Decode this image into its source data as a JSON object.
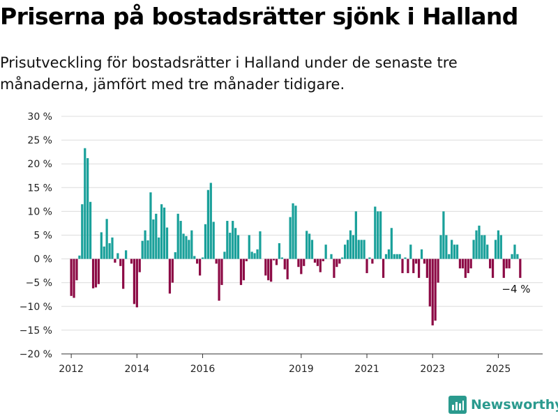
{
  "title": "Priserna på bostadsrätter sjönk i Halland",
  "subtitle": "Prisutveckling för bostadsrätter i Halland under de senaste tre månaderna, jämfört med tre månader tidigare.",
  "brand": {
    "name": "Newsworthy"
  },
  "colors": {
    "positive": "#19a09a",
    "negative": "#8c0a45",
    "grid": "#dcdcdc",
    "axis": "#333333",
    "brand": "#2a9a8e"
  },
  "chart_data": {
    "type": "bar",
    "ylim": [
      -20,
      30
    ],
    "yticks": [
      30,
      25,
      20,
      15,
      10,
      5,
      0,
      -5,
      -10,
      -15,
      -20
    ],
    "ytick_labels": [
      "30 %",
      "25 %",
      "20 %",
      "15 %",
      "10 %",
      "5 %",
      "0 %",
      "−5 %",
      "−10 %",
      "−15 %",
      "−20 %"
    ],
    "xticks": [
      {
        "label": "2012",
        "x": 2012
      },
      {
        "label": "2014",
        "x": 2014
      },
      {
        "label": "2016",
        "x": 2016
      },
      {
        "label": "2019",
        "x": 2019
      },
      {
        "label": "2021",
        "x": 2021
      },
      {
        "label": "2023",
        "x": 2023
      },
      {
        "label": "2025",
        "x": 2025
      }
    ],
    "grid": true,
    "annotation": {
      "text": "−4 %",
      "x": 2025.5,
      "y": -4
    },
    "series": [
      {
        "points": [
          {
            "x": 2012.0,
            "y": -7.8
          },
          {
            "x": 2012.083,
            "y": -8.2
          },
          {
            "x": 2012.167,
            "y": -4.5
          },
          {
            "x": 2012.25,
            "y": 0.7
          },
          {
            "x": 2012.333,
            "y": 11.5
          },
          {
            "x": 2012.417,
            "y": 23.3
          },
          {
            "x": 2012.5,
            "y": 21.2
          },
          {
            "x": 2012.583,
            "y": 12.0
          },
          {
            "x": 2012.667,
            "y": -6.2
          },
          {
            "x": 2012.75,
            "y": -6.0
          },
          {
            "x": 2012.833,
            "y": -5.3
          },
          {
            "x": 2012.917,
            "y": 5.6
          },
          {
            "x": 2013.0,
            "y": 2.6
          },
          {
            "x": 2013.083,
            "y": 8.4
          },
          {
            "x": 2013.167,
            "y": 3.3
          },
          {
            "x": 2013.25,
            "y": 4.5
          },
          {
            "x": 2013.333,
            "y": -0.8
          },
          {
            "x": 2013.417,
            "y": 1.2
          },
          {
            "x": 2013.5,
            "y": -1.5
          },
          {
            "x": 2013.583,
            "y": -6.3
          },
          {
            "x": 2013.667,
            "y": 1.8
          },
          {
            "x": 2013.833,
            "y": -1.0
          },
          {
            "x": 2013.917,
            "y": -9.5
          },
          {
            "x": 2014.0,
            "y": -10.2
          },
          {
            "x": 2014.083,
            "y": -2.8
          },
          {
            "x": 2014.167,
            "y": 3.8
          },
          {
            "x": 2014.25,
            "y": 6.0
          },
          {
            "x": 2014.333,
            "y": 3.9
          },
          {
            "x": 2014.417,
            "y": 14.0
          },
          {
            "x": 2014.5,
            "y": 8.3
          },
          {
            "x": 2014.583,
            "y": 9.5
          },
          {
            "x": 2014.667,
            "y": 4.5
          },
          {
            "x": 2014.75,
            "y": 11.5
          },
          {
            "x": 2014.833,
            "y": 10.8
          },
          {
            "x": 2014.917,
            "y": 6.6
          },
          {
            "x": 2015.0,
            "y": -7.3
          },
          {
            "x": 2015.083,
            "y": -5.0
          },
          {
            "x": 2015.167,
            "y": 1.4
          },
          {
            "x": 2015.25,
            "y": 9.5
          },
          {
            "x": 2015.333,
            "y": 8.0
          },
          {
            "x": 2015.417,
            "y": 5.3
          },
          {
            "x": 2015.5,
            "y": 4.8
          },
          {
            "x": 2015.583,
            "y": 4.0
          },
          {
            "x": 2015.667,
            "y": 6.0
          },
          {
            "x": 2015.75,
            "y": 0.6
          },
          {
            "x": 2015.833,
            "y": -1.0
          },
          {
            "x": 2015.917,
            "y": -3.5
          },
          {
            "x": 2016.0,
            "y": 0.3
          },
          {
            "x": 2016.083,
            "y": 7.3
          },
          {
            "x": 2016.167,
            "y": 14.5
          },
          {
            "x": 2016.25,
            "y": 16.0
          },
          {
            "x": 2016.333,
            "y": 7.8
          },
          {
            "x": 2016.417,
            "y": -1.0
          },
          {
            "x": 2016.5,
            "y": -8.8
          },
          {
            "x": 2016.583,
            "y": -5.5
          },
          {
            "x": 2016.667,
            "y": 1.5
          },
          {
            "x": 2016.75,
            "y": 8.0
          },
          {
            "x": 2016.833,
            "y": 5.5
          },
          {
            "x": 2016.917,
            "y": 8.0
          },
          {
            "x": 2017.0,
            "y": 6.5
          },
          {
            "x": 2017.083,
            "y": 5.0
          },
          {
            "x": 2017.167,
            "y": -5.5
          },
          {
            "x": 2017.25,
            "y": -4.5
          },
          {
            "x": 2017.333,
            "y": -0.5
          },
          {
            "x": 2017.417,
            "y": 5.0
          },
          {
            "x": 2017.5,
            "y": 1.5
          },
          {
            "x": 2017.583,
            "y": 1.2
          },
          {
            "x": 2017.667,
            "y": 2.0
          },
          {
            "x": 2017.75,
            "y": 5.8
          },
          {
            "x": 2017.917,
            "y": -3.5
          },
          {
            "x": 2018.0,
            "y": -4.5
          },
          {
            "x": 2018.083,
            "y": -4.8
          },
          {
            "x": 2018.167,
            "y": -0.3
          },
          {
            "x": 2018.25,
            "y": -1.3
          },
          {
            "x": 2018.333,
            "y": 3.3
          },
          {
            "x": 2018.417,
            "y": 0.3
          },
          {
            "x": 2018.5,
            "y": -2.2
          },
          {
            "x": 2018.583,
            "y": -4.3
          },
          {
            "x": 2018.667,
            "y": 8.8
          },
          {
            "x": 2018.75,
            "y": 11.7
          },
          {
            "x": 2018.833,
            "y": 11.2
          },
          {
            "x": 2018.917,
            "y": -1.7
          },
          {
            "x": 2019.0,
            "y": -3.2
          },
          {
            "x": 2019.083,
            "y": -1.5
          },
          {
            "x": 2019.167,
            "y": 5.9
          },
          {
            "x": 2019.25,
            "y": 5.3
          },
          {
            "x": 2019.333,
            "y": 4.0
          },
          {
            "x": 2019.417,
            "y": -0.8
          },
          {
            "x": 2019.5,
            "y": -1.5
          },
          {
            "x": 2019.583,
            "y": -2.8
          },
          {
            "x": 2019.667,
            "y": -0.5
          },
          {
            "x": 2019.75,
            "y": 3.0
          },
          {
            "x": 2019.917,
            "y": 1.0
          },
          {
            "x": 2020.0,
            "y": -4.0
          },
          {
            "x": 2020.083,
            "y": -1.7
          },
          {
            "x": 2020.167,
            "y": -1.0
          },
          {
            "x": 2020.25,
            "y": 0.3
          },
          {
            "x": 2020.333,
            "y": 3.0
          },
          {
            "x": 2020.417,
            "y": 4.0
          },
          {
            "x": 2020.5,
            "y": 6.0
          },
          {
            "x": 2020.583,
            "y": 5.0
          },
          {
            "x": 2020.667,
            "y": 10.0
          },
          {
            "x": 2020.75,
            "y": 4.0
          },
          {
            "x": 2020.833,
            "y": 4.0
          },
          {
            "x": 2020.917,
            "y": 4.0
          },
          {
            "x": 2021.0,
            "y": -3.0
          },
          {
            "x": 2021.083,
            "y": 0.3
          },
          {
            "x": 2021.167,
            "y": -1.0
          },
          {
            "x": 2021.25,
            "y": 11.0
          },
          {
            "x": 2021.333,
            "y": 10.0
          },
          {
            "x": 2021.417,
            "y": 10.0
          },
          {
            "x": 2021.5,
            "y": -4.0
          },
          {
            "x": 2021.583,
            "y": 1.0
          },
          {
            "x": 2021.667,
            "y": 2.0
          },
          {
            "x": 2021.75,
            "y": 6.5
          },
          {
            "x": 2021.833,
            "y": 1.0
          },
          {
            "x": 2021.917,
            "y": 1.0
          },
          {
            "x": 2022.0,
            "y": 1.0
          },
          {
            "x": 2022.083,
            "y": -3.0
          },
          {
            "x": 2022.167,
            "y": 0.3
          },
          {
            "x": 2022.25,
            "y": -3.0
          },
          {
            "x": 2022.333,
            "y": 3.0
          },
          {
            "x": 2022.417,
            "y": -3.0
          },
          {
            "x": 2022.5,
            "y": -1.0
          },
          {
            "x": 2022.583,
            "y": -4.0
          },
          {
            "x": 2022.667,
            "y": 2.0
          },
          {
            "x": 2022.75,
            "y": -1.0
          },
          {
            "x": 2022.833,
            "y": -4.0
          },
          {
            "x": 2022.917,
            "y": -10.0
          },
          {
            "x": 2023.0,
            "y": -14.0
          },
          {
            "x": 2023.083,
            "y": -13.0
          },
          {
            "x": 2023.167,
            "y": -5.0
          },
          {
            "x": 2023.25,
            "y": 5.0
          },
          {
            "x": 2023.333,
            "y": 10.0
          },
          {
            "x": 2023.417,
            "y": 5.0
          },
          {
            "x": 2023.5,
            "y": 1.0
          },
          {
            "x": 2023.583,
            "y": 4.0
          },
          {
            "x": 2023.667,
            "y": 3.0
          },
          {
            "x": 2023.75,
            "y": 3.0
          },
          {
            "x": 2023.833,
            "y": -2.0
          },
          {
            "x": 2023.917,
            "y": -2.0
          },
          {
            "x": 2024.0,
            "y": -4.0
          },
          {
            "x": 2024.083,
            "y": -3.0
          },
          {
            "x": 2024.167,
            "y": -2.0
          },
          {
            "x": 2024.25,
            "y": 4.0
          },
          {
            "x": 2024.333,
            "y": 6.0
          },
          {
            "x": 2024.417,
            "y": 7.0
          },
          {
            "x": 2024.5,
            "y": 5.0
          },
          {
            "x": 2024.583,
            "y": 5.0
          },
          {
            "x": 2024.667,
            "y": 3.0
          },
          {
            "x": 2024.75,
            "y": -2.0
          },
          {
            "x": 2024.833,
            "y": -4.0
          },
          {
            "x": 2024.917,
            "y": 4.0
          },
          {
            "x": 2025.0,
            "y": 6.0
          },
          {
            "x": 2025.083,
            "y": 5.0
          },
          {
            "x": 2025.167,
            "y": -4.0
          },
          {
            "x": 2025.25,
            "y": -2.0
          },
          {
            "x": 2025.333,
            "y": -2.0
          },
          {
            "x": 2025.417,
            "y": 1.0
          },
          {
            "x": 2025.5,
            "y": 3.0
          },
          {
            "x": 2025.583,
            "y": 1.0
          },
          {
            "x": 2025.667,
            "y": -4.0
          }
        ]
      }
    ]
  }
}
